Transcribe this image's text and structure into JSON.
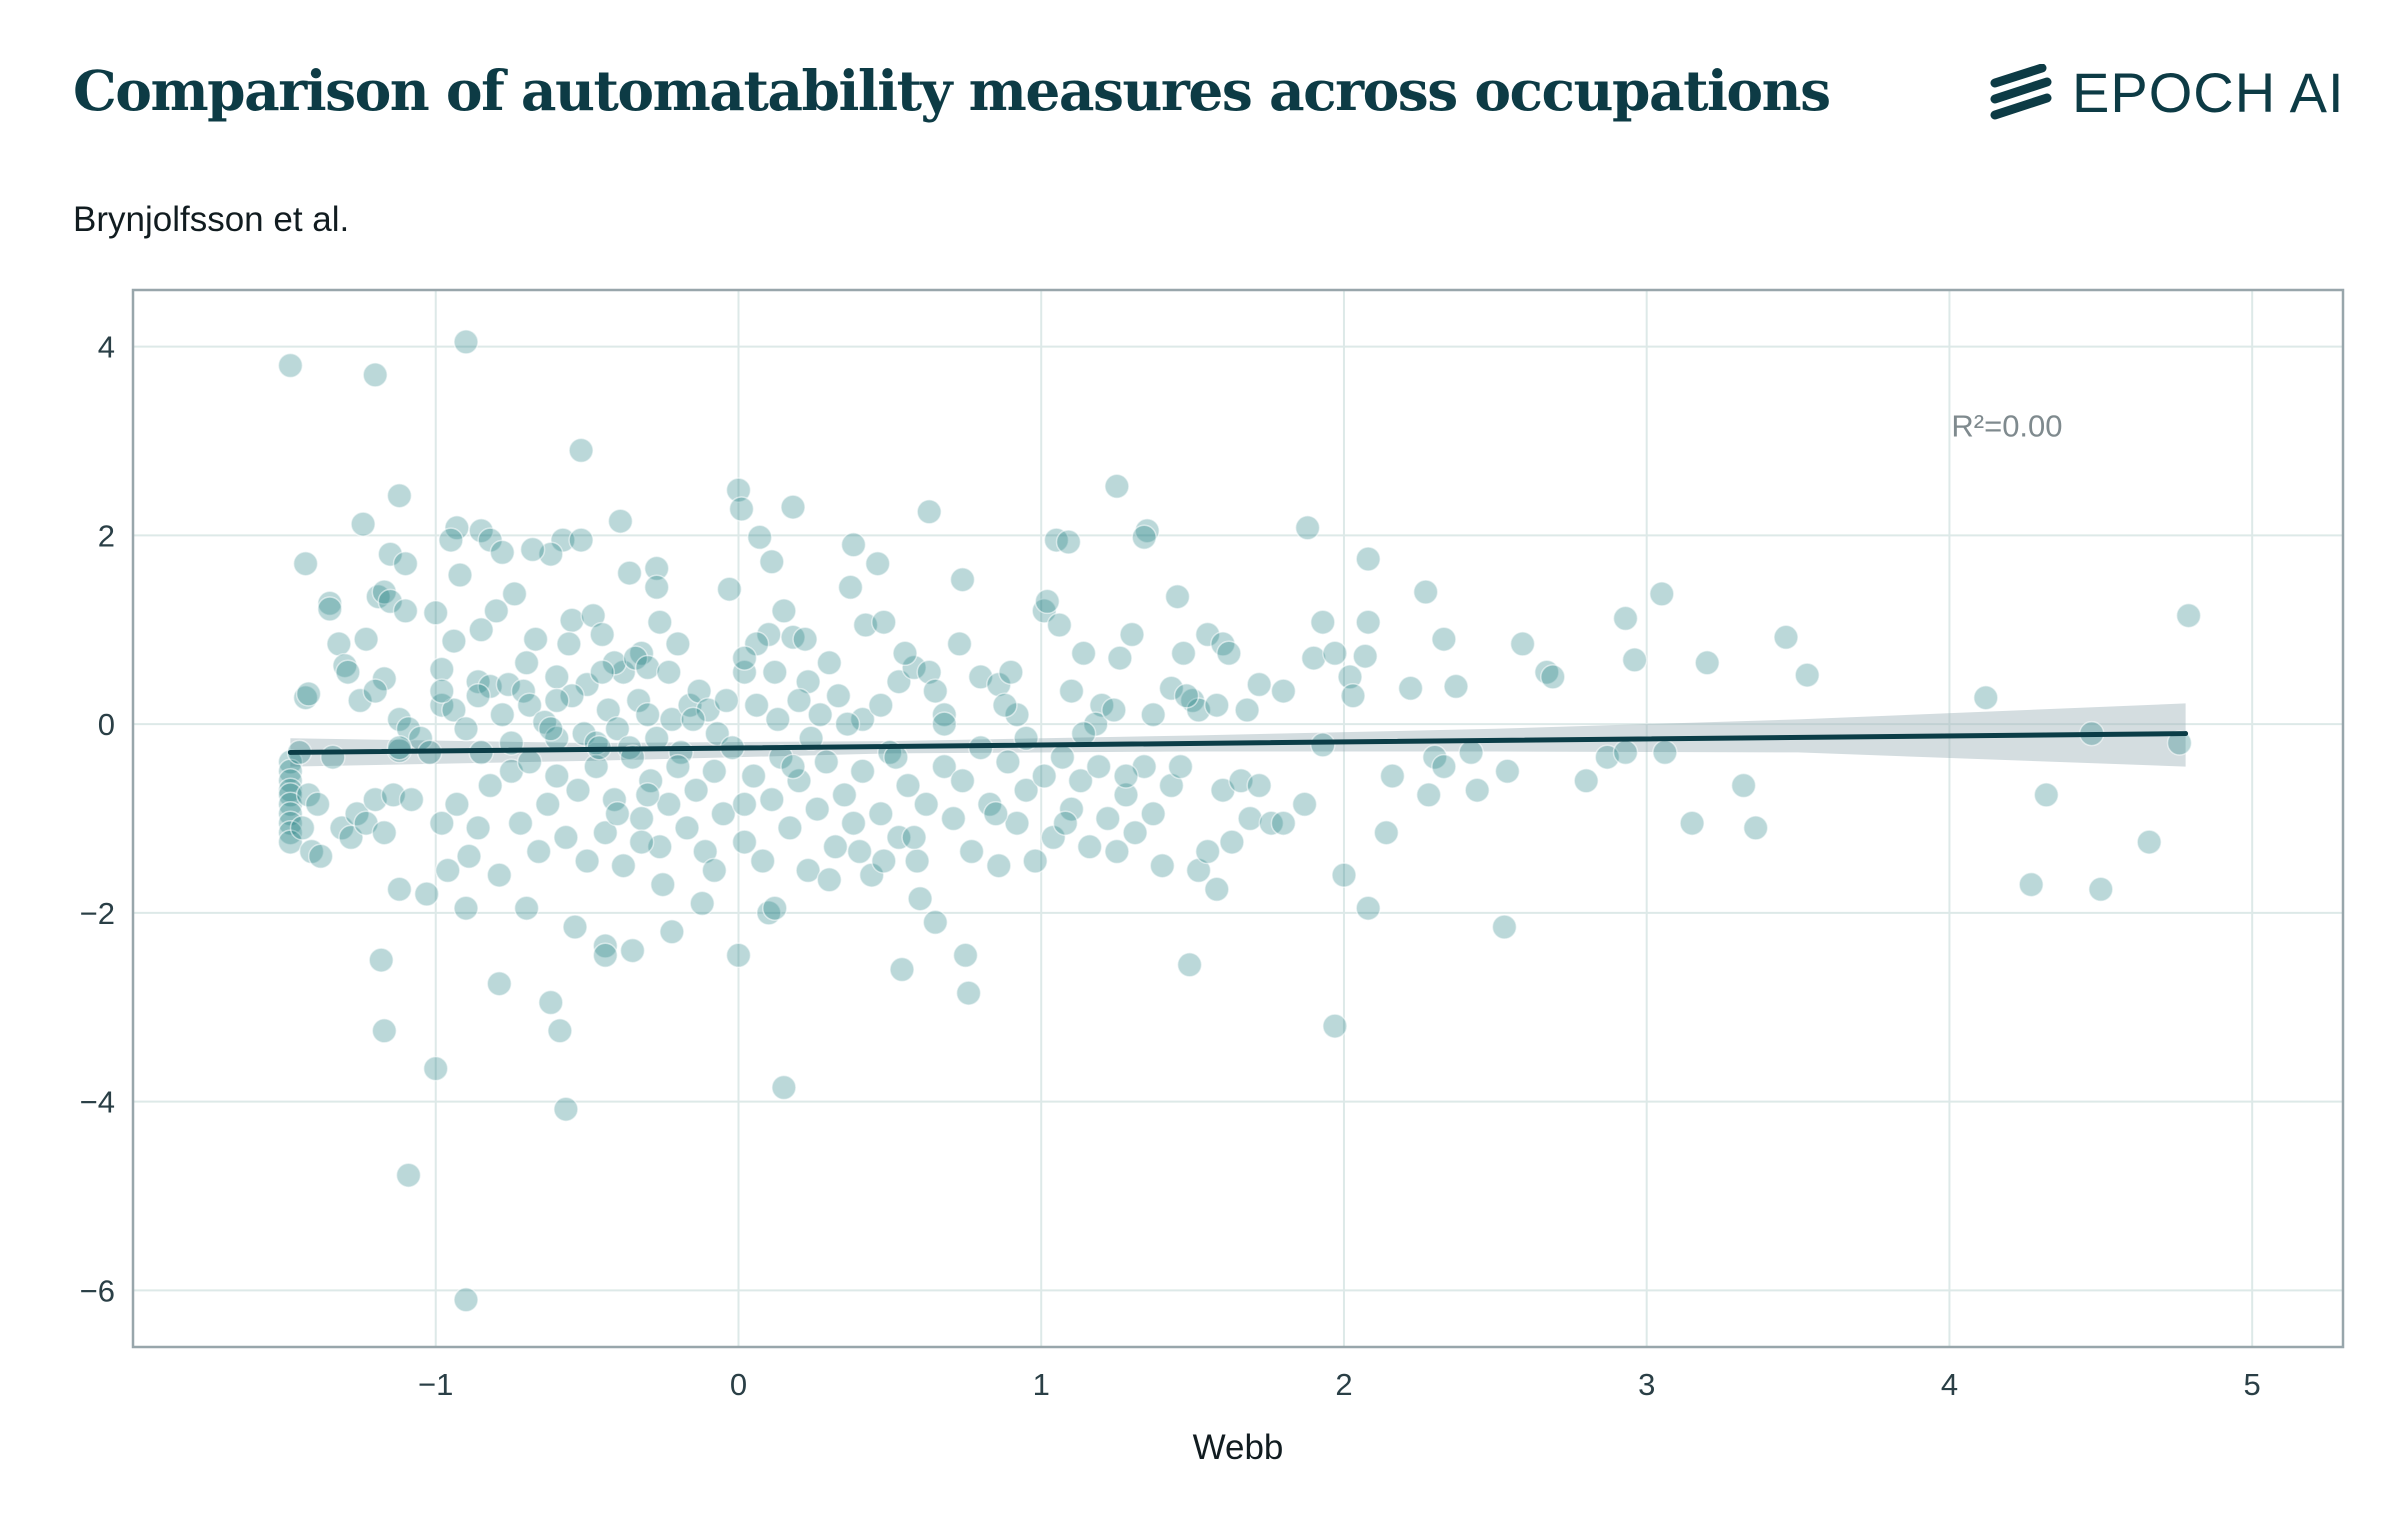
{
  "header": {
    "title": "Comparison of automatability measures across occupations",
    "logo_text": "EPOCH AI"
  },
  "colors": {
    "title": "#0d3b45",
    "point": "#1f7f82",
    "regression_line": "#0b3d47",
    "confidence_band": "#9fb4ba",
    "grid": "#dde9e8",
    "frame": "#98a6ab"
  },
  "chart_data": {
    "type": "scatter",
    "title": "Brynjolfsson et al.",
    "xlabel": "Webb",
    "ylabel": "",
    "xlim": [
      -2.0,
      5.3
    ],
    "ylim": [
      -6.6,
      4.6
    ],
    "xticks": [
      -1,
      0,
      1,
      2,
      3,
      4,
      5
    ],
    "xtick_labels": [
      "−1",
      "0",
      "1",
      "2",
      "3",
      "4",
      "5"
    ],
    "yticks": [
      -6,
      -4,
      -2,
      0,
      2,
      4
    ],
    "ytick_labels": [
      "−6",
      "−4",
      "−2",
      "0",
      "2",
      "4"
    ],
    "grid": true,
    "annotation": "R²=0.00",
    "regression": {
      "x": [
        -1.48,
        4.78
      ],
      "y": [
        -0.3,
        -0.1
      ]
    },
    "confidence_band": {
      "x": [
        -1.48,
        -0.5,
        0.5,
        1.5,
        2.5,
        3.5,
        4.78
      ],
      "upper": [
        -0.15,
        -0.2,
        -0.18,
        -0.12,
        -0.05,
        0.05,
        0.22
      ],
      "lower": [
        -0.45,
        -0.39,
        -0.31,
        -0.29,
        -0.29,
        -0.3,
        -0.45
      ]
    },
    "points": [
      [
        -1.48,
        3.8
      ],
      [
        -0.9,
        4.05
      ],
      [
        -1.2,
        3.7
      ],
      [
        -0.52,
        2.9
      ],
      [
        -1.12,
        2.42
      ],
      [
        -1.24,
        2.12
      ],
      [
        -0.93,
        2.08
      ],
      [
        -0.85,
        2.05
      ],
      [
        -0.95,
        1.95
      ],
      [
        -0.82,
        1.95
      ],
      [
        -0.58,
        1.95
      ],
      [
        -0.52,
        1.95
      ],
      [
        -0.39,
        2.15
      ],
      [
        -1.15,
        1.8
      ],
      [
        -1.1,
        1.7
      ],
      [
        -0.92,
        1.58
      ],
      [
        -0.78,
        1.82
      ],
      [
        -0.62,
        1.8
      ],
      [
        -0.68,
        1.85
      ],
      [
        -0.27,
        1.65
      ],
      [
        -0.27,
        1.45
      ],
      [
        -0.36,
        1.6
      ],
      [
        -1.43,
        1.7
      ],
      [
        -1.35,
        1.28
      ],
      [
        -1.35,
        1.22
      ],
      [
        -1.19,
        1.35
      ],
      [
        -1.17,
        1.4
      ],
      [
        -1.15,
        1.3
      ],
      [
        -1.1,
        1.2
      ],
      [
        -1.0,
        1.18
      ],
      [
        -0.74,
        1.38
      ],
      [
        -0.8,
        1.2
      ],
      [
        -0.55,
        1.1
      ],
      [
        -0.48,
        1.15
      ],
      [
        -0.45,
        0.95
      ],
      [
        -0.32,
        0.75
      ],
      [
        -0.38,
        0.55
      ],
      [
        -0.26,
        1.08
      ],
      [
        -0.2,
        0.85
      ],
      [
        -1.32,
        0.85
      ],
      [
        -1.3,
        0.62
      ],
      [
        -1.23,
        0.9
      ],
      [
        -1.29,
        0.55
      ],
      [
        -1.17,
        0.48
      ],
      [
        -0.98,
        0.58
      ],
      [
        -0.94,
        0.88
      ],
      [
        -0.85,
        1.0
      ],
      [
        -0.86,
        0.45
      ],
      [
        -0.82,
        0.4
      ],
      [
        -0.76,
        0.42
      ],
      [
        -0.71,
        0.35
      ],
      [
        -0.67,
        0.9
      ],
      [
        -0.6,
        0.5
      ],
      [
        -0.56,
        0.85
      ],
      [
        -0.5,
        0.42
      ],
      [
        -0.41,
        0.65
      ],
      [
        -0.34,
        0.7
      ],
      [
        -0.3,
        0.6
      ],
      [
        -0.23,
        0.55
      ],
      [
        -1.43,
        0.28
      ],
      [
        -1.42,
        0.32
      ],
      [
        -1.25,
        0.25
      ],
      [
        -1.2,
        0.35
      ],
      [
        -1.12,
        0.05
      ],
      [
        -1.09,
        -0.05
      ],
      [
        -1.05,
        -0.15
      ],
      [
        -1.12,
        -0.28
      ],
      [
        -0.98,
        0.2
      ],
      [
        -0.94,
        0.15
      ],
      [
        -0.9,
        -0.05
      ],
      [
        -0.86,
        0.3
      ],
      [
        -0.78,
        0.1
      ],
      [
        -0.69,
        0.2
      ],
      [
        -0.64,
        0.02
      ],
      [
        -0.6,
        -0.15
      ],
      [
        -0.55,
        0.3
      ],
      [
        -0.51,
        -0.1
      ],
      [
        -0.47,
        -0.2
      ],
      [
        -0.43,
        0.15
      ],
      [
        -0.4,
        -0.05
      ],
      [
        -0.36,
        -0.25
      ],
      [
        -0.33,
        0.25
      ],
      [
        -0.3,
        0.1
      ],
      [
        -0.27,
        -0.15
      ],
      [
        -0.22,
        0.05
      ],
      [
        -0.19,
        -0.3
      ],
      [
        -0.16,
        0.2
      ],
      [
        -0.13,
        0.35
      ],
      [
        -0.1,
        0.15
      ],
      [
        -0.07,
        -0.1
      ],
      [
        -0.04,
        0.25
      ],
      [
        0.0,
        2.48
      ],
      [
        0.01,
        2.28
      ],
      [
        0.07,
        1.98
      ],
      [
        0.18,
        2.3
      ],
      [
        0.11,
        1.72
      ],
      [
        -0.03,
        1.43
      ],
      [
        0.1,
        0.95
      ],
      [
        0.15,
        1.2
      ],
      [
        0.18,
        0.92
      ],
      [
        0.06,
        0.85
      ],
      [
        0.02,
        0.55
      ],
      [
        0.12,
        0.55
      ],
      [
        0.23,
        0.45
      ],
      [
        0.3,
        0.65
      ],
      [
        0.38,
        1.9
      ],
      [
        0.37,
        1.45
      ],
      [
        0.46,
        1.7
      ],
      [
        0.42,
        1.05
      ],
      [
        0.48,
        1.08
      ],
      [
        0.06,
        0.2
      ],
      [
        0.13,
        0.05
      ],
      [
        0.2,
        0.25
      ],
      [
        0.27,
        0.1
      ],
      [
        0.33,
        0.3
      ],
      [
        0.41,
        0.05
      ],
      [
        0.47,
        0.2
      ],
      [
        0.53,
        0.45
      ],
      [
        0.58,
        0.6
      ],
      [
        0.63,
        0.55
      ],
      [
        0.68,
        0.1
      ],
      [
        0.73,
        0.85
      ],
      [
        0.74,
        1.53
      ],
      [
        0.63,
        2.25
      ],
      [
        0.8,
        0.5
      ],
      [
        0.86,
        0.42
      ],
      [
        0.9,
        0.55
      ],
      [
        0.95,
        -0.15
      ],
      [
        1.01,
        1.2
      ],
      [
        1.02,
        1.3
      ],
      [
        1.05,
        1.95
      ],
      [
        1.09,
        1.93
      ],
      [
        1.06,
        1.05
      ],
      [
        1.1,
        0.35
      ],
      [
        1.14,
        0.75
      ],
      [
        1.2,
        0.2
      ],
      [
        1.25,
        2.52
      ],
      [
        1.26,
        0.7
      ],
      [
        1.3,
        0.95
      ],
      [
        1.35,
        2.05
      ],
      [
        1.34,
        1.98
      ],
      [
        1.37,
        0.1
      ],
      [
        1.43,
        0.38
      ],
      [
        1.45,
        1.35
      ],
      [
        1.47,
        0.75
      ],
      [
        1.5,
        0.25
      ],
      [
        1.52,
        0.15
      ],
      [
        1.55,
        0.95
      ],
      [
        1.6,
        0.85
      ],
      [
        1.62,
        0.75
      ],
      [
        1.68,
        0.15
      ],
      [
        1.72,
        0.42
      ],
      [
        1.8,
        0.35
      ],
      [
        1.88,
        2.08
      ],
      [
        1.9,
        0.7
      ],
      [
        1.93,
        1.08
      ],
      [
        1.97,
        0.75
      ],
      [
        2.02,
        0.5
      ],
      [
        2.03,
        0.3
      ],
      [
        2.08,
        1.75
      ],
      [
        2.08,
        1.08
      ],
      [
        2.07,
        0.72
      ],
      [
        2.22,
        0.38
      ],
      [
        2.27,
        1.4
      ],
      [
        2.33,
        0.9
      ],
      [
        2.37,
        0.4
      ],
      [
        2.59,
        0.85
      ],
      [
        2.67,
        0.55
      ],
      [
        2.69,
        0.5
      ],
      [
        2.93,
        1.12
      ],
      [
        2.96,
        0.68
      ],
      [
        3.05,
        1.38
      ],
      [
        3.2,
        0.65
      ],
      [
        3.46,
        0.92
      ],
      [
        3.53,
        0.52
      ],
      [
        4.79,
        1.15
      ],
      [
        4.12,
        0.28
      ],
      [
        1.93,
        -0.22
      ],
      [
        -1.48,
        -0.4
      ],
      [
        -1.48,
        -0.5
      ],
      [
        -1.48,
        -0.6
      ],
      [
        -1.48,
        -0.7
      ],
      [
        -1.48,
        -0.75
      ],
      [
        -1.48,
        -0.85
      ],
      [
        -1.48,
        -0.95
      ],
      [
        -1.48,
        -1.05
      ],
      [
        -1.48,
        -1.15
      ],
      [
        -1.48,
        -1.25
      ],
      [
        -1.45,
        -0.3
      ],
      [
        -1.44,
        -1.1
      ],
      [
        -1.42,
        -0.75
      ],
      [
        -1.41,
        -1.35
      ],
      [
        -1.39,
        -0.85
      ],
      [
        -1.38,
        -1.4
      ],
      [
        -1.34,
        -0.35
      ],
      [
        -1.31,
        -1.1
      ],
      [
        -1.28,
        -1.2
      ],
      [
        -1.26,
        -0.95
      ],
      [
        -1.23,
        -1.05
      ],
      [
        -1.2,
        -0.8
      ],
      [
        -1.17,
        -1.15
      ],
      [
        -1.14,
        -0.75
      ],
      [
        -1.12,
        -0.25
      ],
      [
        -1.08,
        -0.8
      ],
      [
        -1.03,
        -1.8
      ],
      [
        -0.98,
        -1.05
      ],
      [
        -0.96,
        -1.55
      ],
      [
        -0.93,
        -0.85
      ],
      [
        -0.89,
        -1.4
      ],
      [
        -0.86,
        -1.1
      ],
      [
        -0.82,
        -0.65
      ],
      [
        -0.79,
        -1.6
      ],
      [
        -0.75,
        -0.5
      ],
      [
        -0.72,
        -1.05
      ],
      [
        -0.69,
        -0.4
      ],
      [
        -0.66,
        -1.35
      ],
      [
        -0.63,
        -0.85
      ],
      [
        -0.6,
        -0.55
      ],
      [
        -0.57,
        -1.2
      ],
      [
        -0.53,
        -0.7
      ],
      [
        -0.5,
        -1.45
      ],
      [
        -0.47,
        -0.45
      ],
      [
        -0.44,
        -1.15
      ],
      [
        -0.41,
        -0.8
      ],
      [
        -0.38,
        -1.5
      ],
      [
        -0.35,
        -0.35
      ],
      [
        -0.32,
        -1.0
      ],
      [
        -0.29,
        -0.6
      ],
      [
        -0.26,
        -1.3
      ],
      [
        -0.23,
        -0.85
      ],
      [
        -0.2,
        -0.45
      ],
      [
        -0.17,
        -1.1
      ],
      [
        -0.14,
        -0.7
      ],
      [
        -0.11,
        -1.35
      ],
      [
        -0.08,
        -0.5
      ],
      [
        -0.05,
        -0.95
      ],
      [
        -0.02,
        -0.25
      ],
      [
        0.02,
        -1.25
      ],
      [
        0.05,
        -0.55
      ],
      [
        0.08,
        -1.45
      ],
      [
        0.11,
        -0.8
      ],
      [
        0.14,
        -0.35
      ],
      [
        0.17,
        -1.1
      ],
      [
        0.2,
        -0.6
      ],
      [
        0.23,
        -1.55
      ],
      [
        0.26,
        -0.9
      ],
      [
        0.29,
        -0.4
      ],
      [
        0.32,
        -1.3
      ],
      [
        0.35,
        -0.75
      ],
      [
        0.38,
        -1.05
      ],
      [
        0.41,
        -0.5
      ],
      [
        0.44,
        -1.6
      ],
      [
        0.47,
        -0.95
      ],
      [
        0.5,
        -0.3
      ],
      [
        0.53,
        -1.2
      ],
      [
        0.56,
        -0.65
      ],
      [
        0.59,
        -1.45
      ],
      [
        0.62,
        -0.85
      ],
      [
        0.65,
        -2.1
      ],
      [
        0.68,
        -0.45
      ],
      [
        0.71,
        -1.0
      ],
      [
        0.74,
        -0.6
      ],
      [
        0.77,
        -1.35
      ],
      [
        0.8,
        -0.25
      ],
      [
        0.83,
        -0.85
      ],
      [
        0.86,
        -1.5
      ],
      [
        0.89,
        -0.4
      ],
      [
        0.92,
        -1.05
      ],
      [
        0.95,
        -0.7
      ],
      [
        0.98,
        -1.45
      ],
      [
        1.01,
        -0.55
      ],
      [
        1.04,
        -1.2
      ],
      [
        1.07,
        -0.35
      ],
      [
        1.1,
        -0.9
      ],
      [
        1.13,
        -0.6
      ],
      [
        1.16,
        -1.3
      ],
      [
        1.19,
        -0.45
      ],
      [
        1.22,
        -1.0
      ],
      [
        1.25,
        -1.35
      ],
      [
        1.28,
        -0.75
      ],
      [
        1.31,
        -1.15
      ],
      [
        1.34,
        -0.45
      ],
      [
        1.37,
        -0.95
      ],
      [
        1.4,
        -1.5
      ],
      [
        1.43,
        -0.65
      ],
      [
        1.46,
        -0.45
      ],
      [
        1.49,
        -2.55
      ],
      [
        1.52,
        -1.55
      ],
      [
        1.55,
        -1.35
      ],
      [
        1.58,
        -1.75
      ],
      [
        1.6,
        -0.7
      ],
      [
        1.63,
        -1.25
      ],
      [
        1.66,
        -0.6
      ],
      [
        1.69,
        -1.0
      ],
      [
        1.72,
        -0.65
      ],
      [
        1.76,
        -1.05
      ],
      [
        1.8,
        -1.05
      ],
      [
        1.87,
        -0.85
      ],
      [
        1.97,
        -3.2
      ],
      [
        2.0,
        -1.6
      ],
      [
        2.08,
        -1.95
      ],
      [
        2.14,
        -1.15
      ],
      [
        2.16,
        -0.55
      ],
      [
        2.28,
        -0.75
      ],
      [
        2.3,
        -0.35
      ],
      [
        2.33,
        -0.45
      ],
      [
        2.42,
        -0.3
      ],
      [
        2.44,
        -0.7
      ],
      [
        2.53,
        -2.15
      ],
      [
        2.54,
        -0.5
      ],
      [
        2.8,
        -0.6
      ],
      [
        2.87,
        -0.35
      ],
      [
        2.93,
        -0.3
      ],
      [
        3.06,
        -0.3
      ],
      [
        3.15,
        -1.05
      ],
      [
        3.32,
        -0.65
      ],
      [
        3.36,
        -1.1
      ],
      [
        4.27,
        -1.7
      ],
      [
        4.32,
        -0.75
      ],
      [
        4.47,
        -0.1
      ],
      [
        4.5,
        -1.75
      ],
      [
        4.66,
        -1.25
      ],
      [
        4.76,
        -0.2
      ],
      [
        -1.18,
        -2.5
      ],
      [
        -1.17,
        -3.25
      ],
      [
        -1.0,
        -3.65
      ],
      [
        -1.09,
        -4.78
      ],
      [
        -0.9,
        -6.1
      ],
      [
        -0.79,
        -2.75
      ],
      [
        -0.62,
        -2.95
      ],
      [
        -0.59,
        -3.25
      ],
      [
        -0.57,
        -4.08
      ],
      [
        -0.54,
        -2.15
      ],
      [
        -0.44,
        -2.35
      ],
      [
        -0.44,
        -2.45
      ],
      [
        -0.35,
        -2.4
      ],
      [
        -0.22,
        -2.2
      ],
      [
        0.0,
        -2.45
      ],
      [
        0.15,
        -3.85
      ],
      [
        0.1,
        -2.0
      ],
      [
        0.54,
        -2.6
      ],
      [
        0.75,
        -2.45
      ],
      [
        0.76,
        -2.85
      ],
      [
        0.6,
        -1.85
      ],
      [
        0.3,
        -1.65
      ],
      [
        -0.12,
        -1.9
      ],
      [
        -0.7,
        -1.95
      ],
      [
        -0.9,
        -1.95
      ],
      [
        -1.12,
        -1.75
      ],
      [
        -0.25,
        -1.7
      ],
      [
        0.4,
        -1.35
      ],
      [
        0.58,
        -1.2
      ],
      [
        0.02,
        -0.85
      ],
      [
        -0.46,
        -0.25
      ],
      [
        -0.62,
        -0.05
      ],
      [
        0.24,
        -0.15
      ],
      [
        0.36,
        0.0
      ],
      [
        0.68,
        0.0
      ],
      [
        1.58,
        0.2
      ],
      [
        1.48,
        0.3
      ],
      [
        0.92,
        0.1
      ],
      [
        -0.6,
        0.25
      ],
      [
        -0.75,
        -0.2
      ],
      [
        -1.02,
        -0.3
      ],
      [
        -0.3,
        -0.75
      ],
      [
        0.85,
        -0.95
      ],
      [
        1.08,
        -1.05
      ],
      [
        -0.08,
        -1.55
      ],
      [
        0.52,
        -0.35
      ],
      [
        -0.4,
        -0.95
      ],
      [
        0.18,
        -0.45
      ],
      [
        0.22,
        0.9
      ],
      [
        0.55,
        0.75
      ],
      [
        -0.15,
        0.05
      ],
      [
        1.18,
        0.0
      ],
      [
        0.02,
        0.7
      ],
      [
        -0.7,
        0.65
      ],
      [
        -0.98,
        0.35
      ],
      [
        1.14,
        -0.1
      ],
      [
        0.48,
        -1.45
      ],
      [
        0.12,
        -1.95
      ],
      [
        -0.32,
        -1.25
      ],
      [
        -0.85,
        -0.3
      ],
      [
        1.24,
        0.15
      ],
      [
        0.88,
        0.2
      ],
      [
        1.28,
        -0.55
      ],
      [
        0.65,
        0.35
      ],
      [
        -0.45,
        0.55
      ]
    ]
  }
}
